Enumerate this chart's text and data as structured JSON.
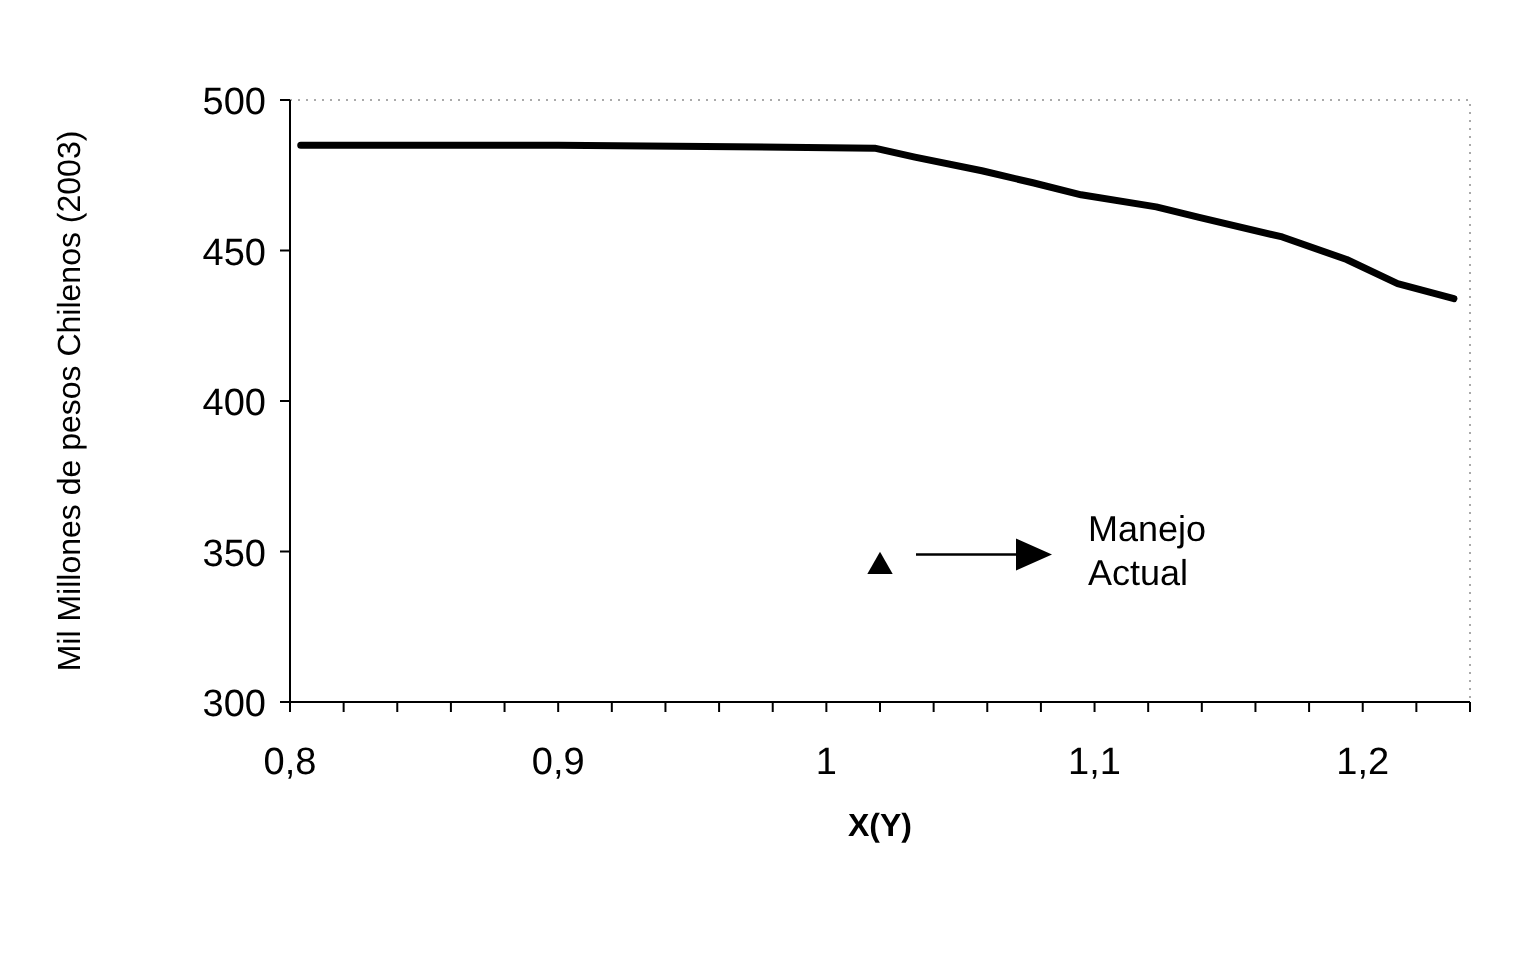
{
  "chart_data": {
    "type": "line",
    "xlabel": "X(Y)",
    "ylabel": "Mil Millones de pesos Chilenos (2003)",
    "xlim": [
      0.8,
      1.24
    ],
    "xticks": [
      {
        "value": 0.8,
        "label": "0,8"
      },
      {
        "value": 0.9,
        "label": "0,9"
      },
      1,
      {
        "value": 1.1,
        "label": "1,1"
      },
      {
        "value": 1.2,
        "label": "1,2"
      }
    ],
    "ylim": [
      300,
      500
    ],
    "yticks": [
      300,
      350,
      400,
      450,
      500
    ],
    "grid": false,
    "series": [
      {
        "color": "#000000",
        "marker": "none",
        "line_style": "solid",
        "x": [
          0.804,
          0.9,
          1.018,
          1.033,
          1.058,
          1.077,
          1.095,
          1.123,
          1.139,
          1.17,
          1.194,
          1.213,
          1.234
        ],
        "values": [
          485,
          485,
          484,
          481,
          476.5,
          472.5,
          468.5,
          464.5,
          461,
          454.5,
          447,
          439,
          434
        ]
      },
      {
        "type": "scatter",
        "color": "#000000",
        "marker": "triangle",
        "x": [
          1.02
        ],
        "values": [
          345
        ]
      }
    ],
    "annotations": [
      "Manejo\nActual"
    ]
  }
}
